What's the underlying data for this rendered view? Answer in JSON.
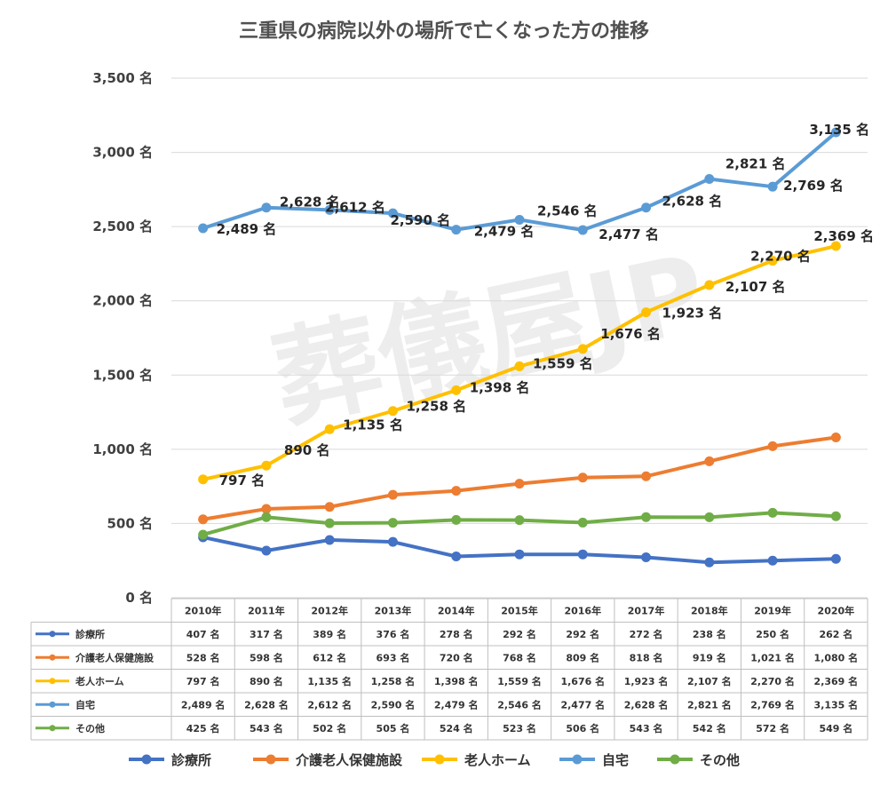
{
  "watermark": "葬儀屋JP",
  "chart_data": {
    "type": "line",
    "title": "三重県の病院以外の場所で亡くなった方の推移",
    "unit": "名",
    "categories": [
      "2010年",
      "2011年",
      "2012年",
      "2013年",
      "2014年",
      "2015年",
      "2016年",
      "2017年",
      "2018年",
      "2019年",
      "2020年"
    ],
    "ylim": [
      0,
      3500
    ],
    "yticks": [
      0,
      500,
      1000,
      1500,
      2000,
      2500,
      3000,
      3500
    ],
    "ytick_labels": [
      "0 名",
      "500 名",
      "1,000 名",
      "1,500 名",
      "2,000 名",
      "2,500 名",
      "3,000 名",
      "3,500 名"
    ],
    "grid": true,
    "legend_position": "bottom",
    "series": [
      {
        "name": "診療所",
        "color": "#4472C4",
        "values": [
          407,
          317,
          389,
          376,
          278,
          292,
          292,
          272,
          238,
          250,
          262
        ],
        "labels": [
          "407 名",
          "317 名",
          "389 名",
          "376 名",
          "278 名",
          "292 名",
          "292 名",
          "272 名",
          "238 名",
          "250 名",
          "262 名"
        ]
      },
      {
        "name": "介護老人保健施設",
        "color": "#ED7D31",
        "values": [
          528,
          598,
          612,
          693,
          720,
          768,
          809,
          818,
          919,
          1021,
          1080
        ],
        "labels": [
          "528 名",
          "598 名",
          "612 名",
          "693 名",
          "720 名",
          "768 名",
          "809 名",
          "818 名",
          "919 名",
          "1,021 名",
          "1,080 名"
        ]
      },
      {
        "name": "老人ホーム",
        "color": "#FFC000",
        "values": [
          797,
          890,
          1135,
          1258,
          1398,
          1559,
          1676,
          1923,
          2107,
          2270,
          2369
        ],
        "labels": [
          "797 名",
          "890 名",
          "1,135 名",
          "1,258 名",
          "1,398 名",
          "1,559 名",
          "1,676 名",
          "1,923 名",
          "2,107 名",
          "2,270 名",
          "2,369 名"
        ]
      },
      {
        "name": "自宅",
        "color": "#5B9BD5",
        "values": [
          2489,
          2628,
          2612,
          2590,
          2479,
          2546,
          2477,
          2628,
          2821,
          2769,
          3135
        ],
        "labels": [
          "2,489 名",
          "2,628 名",
          "2,612 名",
          "2,590 名",
          "2,479 名",
          "2,546 名",
          "2,477 名",
          "2,628 名",
          "2,821 名",
          "2,769 名",
          "3,135 名"
        ]
      },
      {
        "name": "その他",
        "color": "#70AD47",
        "values": [
          425,
          543,
          502,
          505,
          524,
          523,
          506,
          543,
          542,
          572,
          549
        ],
        "labels": [
          "425 名",
          "543 名",
          "502 名",
          "505 名",
          "524 名",
          "523 名",
          "506 名",
          "543 名",
          "542 名",
          "572 名",
          "549 名"
        ]
      }
    ]
  }
}
